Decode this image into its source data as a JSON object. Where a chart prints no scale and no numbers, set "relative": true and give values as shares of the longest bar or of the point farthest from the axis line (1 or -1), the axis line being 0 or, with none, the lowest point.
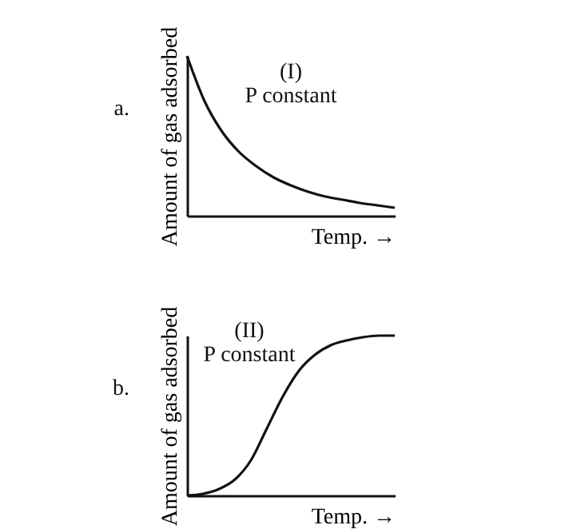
{
  "chart_data": [
    {
      "type": "line",
      "relative": true,
      "tick_labels": false,
      "xlabel": "Temp. →",
      "ylabel": "Amount of gas adsorbed",
      "annotations": [
        "a.",
        "(I)",
        "P  constant"
      ],
      "categories": [
        null,
        null,
        null,
        null,
        null,
        null,
        null,
        null,
        null,
        null,
        null,
        null,
        null
      ],
      "series": [
        {
          "color": "#111111",
          "values": [
            1,
            0.72,
            0.53,
            0.4,
            0.31,
            0.24,
            0.19,
            0.15,
            0.12,
            0.1,
            0.08,
            0.065,
            0.05
          ]
        }
      ]
    },
    {
      "type": "line",
      "relative": true,
      "tick_labels": false,
      "xlabel": "Temp. →",
      "ylabel": "Amount of gas adsorbed",
      "annotations": [
        "b.",
        "(II)",
        "P  constant"
      ],
      "categories": [
        null,
        null,
        null,
        null,
        null,
        null,
        null,
        null,
        null,
        null,
        null,
        null,
        null,
        null
      ],
      "series": [
        {
          "color": "#111111",
          "values": [
            0,
            0.01,
            0.04,
            0.1,
            0.22,
            0.42,
            0.62,
            0.78,
            0.88,
            0.94,
            0.97,
            0.99,
            1,
            1
          ]
        }
      ]
    }
  ]
}
